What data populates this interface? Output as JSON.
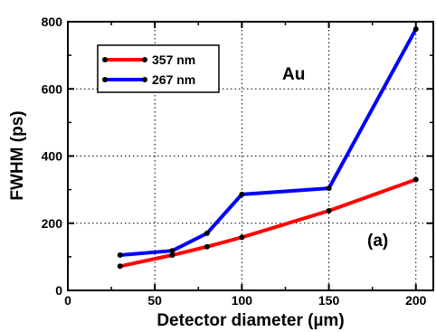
{
  "chart_data": {
    "type": "line",
    "xlabel": "Detector diameter (µm)",
    "ylabel": "FWHM (ps)",
    "xlim": [
      0,
      210
    ],
    "ylim": [
      0,
      800
    ],
    "xticks": [
      0,
      50,
      100,
      150,
      200
    ],
    "yticks": [
      0,
      200,
      400,
      600,
      800
    ],
    "grid": true,
    "legend_position": "top-left",
    "series": [
      {
        "name": "357 nm",
        "color": "#ff0000",
        "x": [
          30,
          60,
          80,
          100,
          150,
          200
        ],
        "y": [
          72,
          105,
          130,
          158,
          237,
          330
        ]
      },
      {
        "name": "267 nm",
        "color": "#0000ff",
        "x": [
          30,
          60,
          80,
          100,
          150,
          200
        ],
        "y": [
          105,
          118,
          170,
          286,
          304,
          778
        ]
      }
    ],
    "annotations": [
      "Au",
      "(a)"
    ]
  }
}
